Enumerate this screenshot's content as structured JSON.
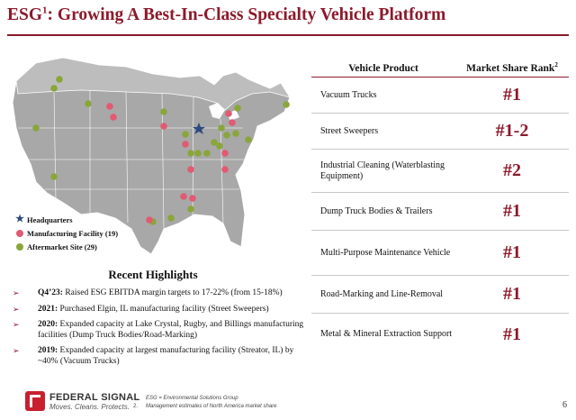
{
  "header": {
    "title_main": "ESG",
    "title_sup": "1",
    "title_rest": ": Growing A Best-In-Class Specialty Vehicle Platform"
  },
  "map": {
    "legend": [
      {
        "icon": "star-icon",
        "label": "Headquarters"
      },
      {
        "icon": "red-dot-icon",
        "label": "Manufacturing Facility (19)"
      },
      {
        "icon": "green-dot-icon",
        "label": "Aftermarket Site (29)"
      }
    ],
    "colors": {
      "land": "#a8a8a8",
      "manufacturing": "#e15a72",
      "aftermarket": "#8aa63a",
      "headquarters": "#2e4a80"
    }
  },
  "highlights": {
    "title": "Recent Highlights",
    "items": [
      {
        "lead": "Q4’23:",
        "text": " Raised ESG EBITDA margin targets to 17-22% (from 15-18%)"
      },
      {
        "lead": "2021:",
        "text": " Purchased Elgin, IL manufacturing facility (Street Sweepers)"
      },
      {
        "lead": "2020:",
        "text": " Expanded capacity at Lake Crystal, Rugby, and Billings manufacturing facilities (Dump Truck Bodies/Road-Marking)"
      },
      {
        "lead": "2019:",
        "text": " Expanded capacity at largest manufacturing facility (Streator, IL) by ~40% (Vacuum Trucks)"
      }
    ]
  },
  "table": {
    "col1": "Vehicle Product",
    "col2": "Market Share Rank",
    "col2_sup": "2",
    "rows": [
      {
        "product": "Vacuum Trucks",
        "rank": "#1"
      },
      {
        "product": "Street Sweepers",
        "rank": "#1-2"
      },
      {
        "product": "Industrial Cleaning (Waterblasting Equipment)",
        "rank": "#2"
      },
      {
        "product": "Dump Truck Bodies & Trailers",
        "rank": "#1"
      },
      {
        "product": "Multi-Purpose Maintenance Vehicle",
        "rank": "#1"
      },
      {
        "product": "Road-Marking and Line-Removal",
        "rank": "#1"
      },
      {
        "product": "Metal & Mineral Extraction Support",
        "rank": "#1"
      }
    ],
    "accent": "#8b1a2b"
  },
  "footer": {
    "logo_name": "FEDERAL SIGNAL",
    "logo_tag": "Moves. Cleans. Protects.",
    "notes": [
      {
        "n": "1.",
        "text": "ESG = Environmental Solutions Group"
      },
      {
        "n": "2.",
        "text": "Management estimates of North America market share"
      }
    ],
    "page": "6"
  }
}
